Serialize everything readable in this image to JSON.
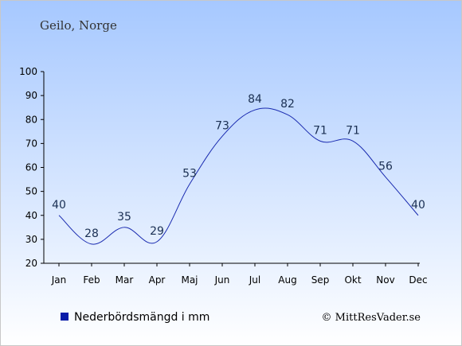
{
  "chart_data": {
    "type": "line",
    "title": "Geilo, Norge",
    "categories": [
      "Jan",
      "Feb",
      "Mar",
      "Apr",
      "Maj",
      "Jun",
      "Jul",
      "Aug",
      "Sep",
      "Okt",
      "Nov",
      "Dec"
    ],
    "series": [
      {
        "name": "Nederbördsmängd i mm",
        "values": [
          40,
          28,
          35,
          29,
          53,
          73,
          84,
          82,
          71,
          71,
          56,
          40
        ],
        "color": "#1a2bb0"
      }
    ],
    "ylim": [
      20,
      100
    ],
    "yticks": [
      "20",
      "30",
      "40",
      "50",
      "60",
      "70",
      "80",
      "90",
      "100"
    ],
    "grid": false,
    "legend_position": "bottom-left",
    "colors": {
      "background_top": "#a6c8ff",
      "background_bottom": "#ffffff",
      "line": "#1a2bb0",
      "legend_marker": "#0a1ca8"
    }
  },
  "footer": {
    "legend_label": "Nederbördsmängd i mm",
    "copyright": "© MittResVader.se"
  }
}
